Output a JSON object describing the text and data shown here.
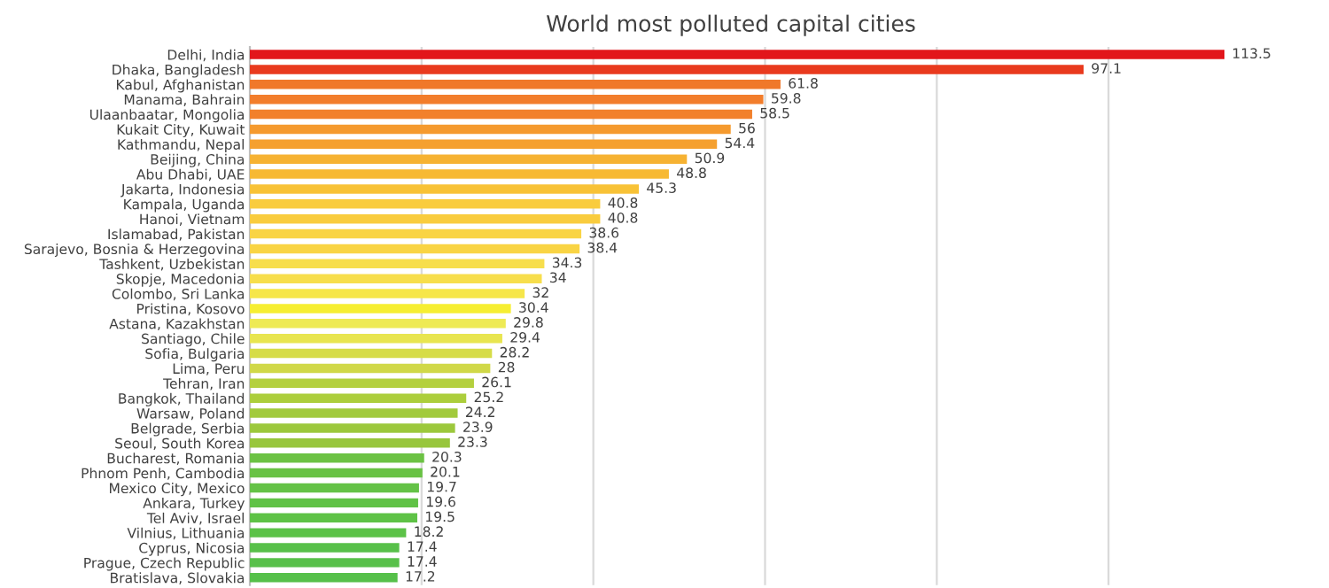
{
  "chart_data": {
    "type": "bar",
    "orientation": "horizontal",
    "title": "World most polluted capital cities",
    "categories": [
      "Delhi, India",
      "Dhaka, Bangladesh",
      "Kabul, Afghanistan",
      "Manama, Bahrain",
      "Ulaanbaatar, Mongolia",
      "Kukait City, Kuwait",
      "Kathmandu, Nepal",
      "Beijing, China",
      "Abu Dhabi, UAE",
      "Jakarta, Indonesia",
      "Kampala, Uganda",
      "Hanoi, Vietnam",
      "Islamabad, Pakistan",
      "Sarajevo, Bosnia & Herzegovina",
      "Tashkent, Uzbekistan",
      "Skopje, Macedonia",
      "Colombo, Sri Lanka",
      "Pristina, Kosovo",
      "Astana, Kazakhstan",
      "Santiago, Chile",
      "Sofia, Bulgaria",
      "Lima, Peru",
      "Tehran, Iran",
      "Bangkok, Thailand",
      "Warsaw, Poland",
      "Belgrade, Serbia",
      "Seoul, South Korea",
      "Bucharest, Romania",
      "Phnom Penh, Cambodia",
      "Mexico City, Mexico",
      "Ankara, Turkey",
      "Tel Aviv, Israel",
      "Vilnius, Lithuania",
      "Cyprus, Nicosia",
      "Prague, Czech Republic",
      "Bratislava, Slovakia"
    ],
    "values": [
      113.5,
      97.1,
      61.8,
      59.8,
      58.5,
      56,
      54.4,
      50.9,
      48.8,
      45.3,
      40.8,
      40.8,
      38.6,
      38.4,
      34.3,
      34,
      32,
      30.4,
      29.8,
      29.4,
      28.2,
      28,
      26.1,
      25.2,
      24.2,
      23.9,
      23.3,
      20.3,
      20.1,
      19.7,
      19.6,
      19.5,
      18.2,
      17.4,
      17.4,
      17.2
    ],
    "colors": [
      "#e2161b",
      "#e93a1e",
      "#f0782a",
      "#f27d2b",
      "#f2802b",
      "#f59a2e",
      "#f5a02f",
      "#f6b232",
      "#f7b933",
      "#f8c236",
      "#f9cc3e",
      "#f9cc3e",
      "#f9d444",
      "#f9d444",
      "#f7de4c",
      "#f7de4c",
      "#f6e64a",
      "#f6ee32",
      "#eeea55",
      "#e8e550",
      "#d6dc48",
      "#d0d848",
      "#b4d03e",
      "#acce3c",
      "#a2ca3c",
      "#9cc83c",
      "#98c63c",
      "#6cc244",
      "#68c244",
      "#64c246",
      "#60c246",
      "#5ec246",
      "#5cc248",
      "#58c04a",
      "#58c04a",
      "#56c04a"
    ],
    "tick_labels": "y",
    "grid": "x",
    "data_labels": true
  }
}
